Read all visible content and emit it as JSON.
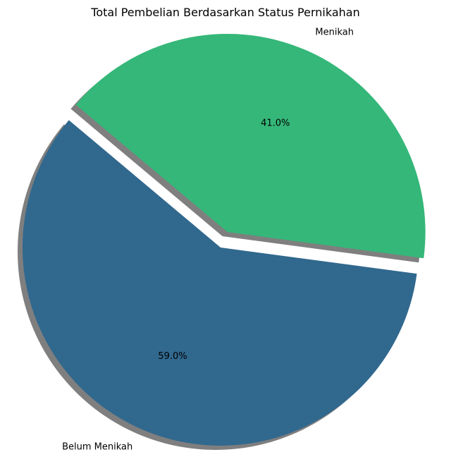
{
  "chart_data": {
    "type": "pie",
    "title": "Total Pembelian Berdasarkan Status Pernikahan",
    "categories": [
      "Belum Menikah",
      "Menikah"
    ],
    "values": [
      59.0,
      41.0
    ],
    "percent_labels": [
      "59.0%",
      "41.0%"
    ],
    "colors": [
      "#31688e",
      "#35b779"
    ],
    "exploded": [
      false,
      true
    ],
    "shadow": true
  }
}
